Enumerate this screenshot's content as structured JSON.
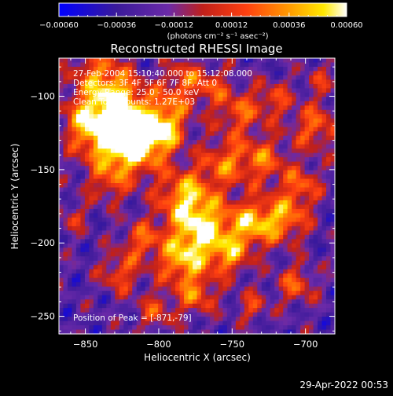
{
  "chart_data": {
    "type": "heatmap",
    "title": "Reconstructed RHESSI Image",
    "xlabel": "Heliocentric X (arcsec)",
    "ylabel": "Heliocentric Y (arcsec)",
    "xlim": [
      -868,
      -680
    ],
    "ylim": [
      -262,
      -74
    ],
    "x_ticks": [
      -850,
      -800,
      -750,
      -700
    ],
    "y_ticks": [
      -100,
      -150,
      -200,
      -250
    ],
    "colorbar": {
      "range": [
        -0.0006,
        0.0006
      ],
      "tick_values": [
        -0.0006,
        -0.00036,
        -0.00012,
        0.00012,
        0.00036,
        0.0006
      ],
      "tick_labels": [
        "-0.00060",
        "-0.00036",
        "-0.00012",
        "0.00012",
        "0.00036",
        "0.00060"
      ],
      "unit_label": "(photons cm⁻² s⁻¹ asec⁻²)"
    },
    "colormap": [
      "#0000ff",
      "#3a1a9a",
      "#6b2aa8",
      "#c0201a",
      "#ff4010",
      "#ff9a00",
      "#ffe800",
      "#ffffff"
    ],
    "annotations": [
      "27-Feb-2004 15:10:40.000 to 15:12:08.000",
      "Detectors: 3F 4F 5F 6F 7F 8F, Att 0",
      "Energy Range: 25.0 - 50.0 keV",
      "Clean     Total counts: 1.27E+03"
    ],
    "peak_label": "Position of Peak = [-871,-79]",
    "peak_position": [
      -871,
      -79
    ]
  },
  "timestamp": "29-Apr-2022 00:53"
}
